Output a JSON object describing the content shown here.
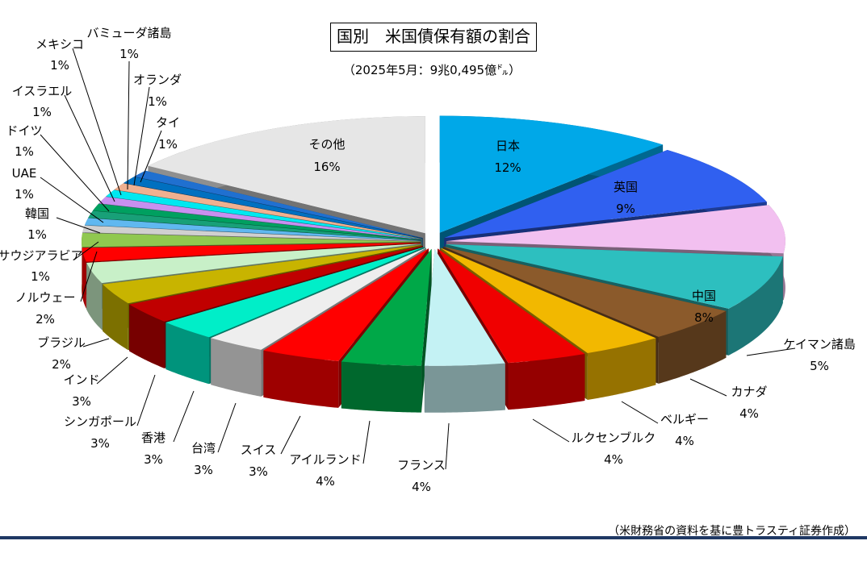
{
  "chart_data": {
    "type": "pie",
    "title": "国別　米国債保有額の割合",
    "subtitle": "（2025年5月：9兆0,495億㌦）",
    "source_note": "（米財務省の資料を基に豊トラスティ証券作成）",
    "slices": [
      {
        "label": "日本",
        "value": 12,
        "value_label": "12%",
        "color": "#00a8e8"
      },
      {
        "label": "英国",
        "value": 9,
        "value_label": "9%",
        "color": "#3060f0"
      },
      {
        "label": "",
        "value": 7,
        "value_label": "",
        "color": "#f2c0f0"
      },
      {
        "label": "中国",
        "value": 8,
        "value_label": "8%",
        "color": "#2dbfbf"
      },
      {
        "label": "ケイマン諸島",
        "value": 5,
        "value_label": "5%",
        "color": "#8b5a2b"
      },
      {
        "label": "カナダ",
        "value": 4,
        "value_label": "4%",
        "color": "#f2b800"
      },
      {
        "label": "ベルギー",
        "value": 4,
        "value_label": "4%",
        "color": "#f00000"
      },
      {
        "label": "ルクセンブルク",
        "value": 4,
        "value_label": "4%",
        "color": "#c4f2f4"
      },
      {
        "label": "フランス",
        "value": 4,
        "value_label": "4%",
        "color": "#00a848"
      },
      {
        "label": "アイルランド",
        "value": 4,
        "value_label": "4%",
        "color": "#ff0000"
      },
      {
        "label": "スイス",
        "value": 3,
        "value_label": "3%",
        "color": "#eeeeee"
      },
      {
        "label": "台湾",
        "value": 3,
        "value_label": "3%",
        "color": "#00eec8"
      },
      {
        "label": "香港",
        "value": 3,
        "value_label": "3%",
        "color": "#c00000"
      },
      {
        "label": "シンガポール",
        "value": 3,
        "value_label": "3%",
        "color": "#c8b400"
      },
      {
        "label": "インド",
        "value": 3,
        "value_label": "3%",
        "color": "#c8f0c8"
      },
      {
        "label": "ブラジル",
        "value": 2,
        "value_label": "2%",
        "color": "#ff0000"
      },
      {
        "label": "ノルウェー",
        "value": 2,
        "value_label": "2%",
        "color": "#90c850"
      },
      {
        "label": "サウジアラビア",
        "value": 1,
        "value_label": "1%",
        "color": "#d0d0d0"
      },
      {
        "label": "韓国",
        "value": 1,
        "value_label": "1%",
        "color": "#60b8f0"
      },
      {
        "label": "UAE",
        "value": 1,
        "value_label": "1%",
        "color": "#18a078"
      },
      {
        "label": "ドイツ",
        "value": 1,
        "value_label": "1%",
        "color": "#00a060"
      },
      {
        "label": "イスラエル",
        "value": 1,
        "value_label": "1%",
        "color": "#c890f0"
      },
      {
        "label": "メキシコ",
        "value": 1,
        "value_label": "1%",
        "color": "#00e8f0"
      },
      {
        "label": "バミューダ諸島",
        "value": 1,
        "value_label": "1%",
        "color": "#f0b090"
      },
      {
        "label": "オランダ",
        "value": 1,
        "value_label": "1%",
        "color": "#0070c0"
      },
      {
        "label": "タイ",
        "value": 1,
        "value_label": "1%",
        "color": "#2070d0"
      },
      {
        "label": "その他",
        "value": 16,
        "value_label": "16%",
        "color": "#e6e6e6"
      }
    ]
  }
}
